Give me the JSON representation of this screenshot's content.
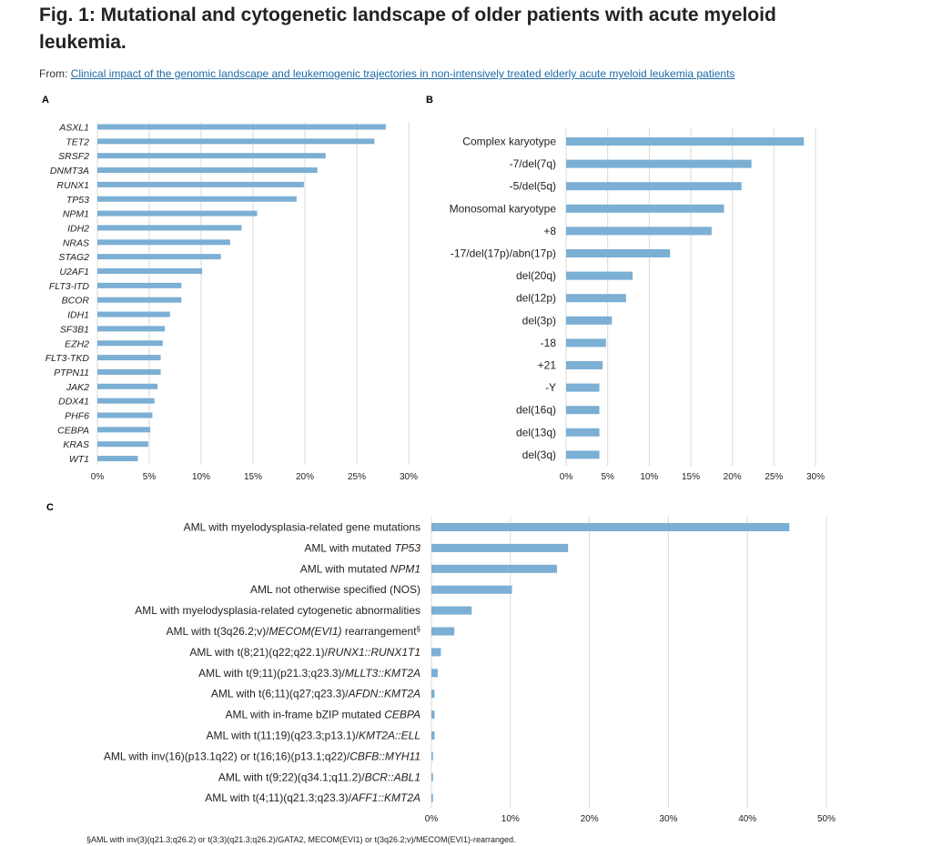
{
  "page": {
    "title": "Fig. 1: Mutational and cytogenetic landscape of older patients with acute myeloid leukemia.",
    "from_label": "From:",
    "source_link": "Clinical impact of the genomic landscape and leukemogenic trajectories in non-intensively treated elderly acute myeloid leukemia patients",
    "footnote": "§AML with inv(3)(q21.3;q26.2) or t(3;3)(q21.3;q26.2)/GATA2, MECOM(EVI1) or t(3q26.2;v)/MECOM(EVI1)-rearranged."
  },
  "colors": {
    "bar": "#7bafd4",
    "grid": "#d9d9d9",
    "text": "#222222",
    "link": "#1d6aa5"
  },
  "chart_data": [
    {
      "panel": "A",
      "type": "bar",
      "orientation": "horizontal",
      "categories": [
        "ASXL1",
        "TET2",
        "SRSF2",
        "DNMT3A",
        "RUNX1",
        "TP53",
        "NPM1",
        "IDH2",
        "NRAS",
        "STAG2",
        "U2AF1",
        "FLT3-ITD",
        "BCOR",
        "IDH1",
        "SF3B1",
        "EZH2",
        "FLT3-TKD",
        "PTPN11",
        "JAK2",
        "DDX41",
        "PHF6",
        "CEBPA",
        "KRAS",
        "WT1"
      ],
      "values": [
        27.8,
        26.7,
        22.0,
        21.2,
        19.9,
        19.2,
        15.4,
        13.9,
        12.8,
        11.9,
        10.1,
        8.1,
        8.1,
        7.0,
        6.5,
        6.3,
        6.1,
        6.1,
        5.8,
        5.5,
        5.3,
        5.1,
        4.9,
        3.9
      ],
      "xlim": [
        0,
        30
      ],
      "ticks": [
        "0%",
        "5%",
        "10%",
        "15%",
        "20%",
        "25%",
        "30%"
      ],
      "grid": true
    },
    {
      "panel": "B",
      "type": "bar",
      "orientation": "horizontal",
      "categories": [
        "Complex karyotype",
        "-7/del(7q)",
        "-5/del(5q)",
        "Monosomal karyotype",
        "+8",
        "-17/del(17p)/abn(17p)",
        "del(20q)",
        "del(12p)",
        "del(3p)",
        "-18",
        "+21",
        "-Y",
        "del(16q)",
        "del(13q)",
        "del(3q)"
      ],
      "values": [
        28.6,
        22.3,
        21.1,
        19.0,
        17.5,
        12.5,
        8.0,
        7.2,
        5.5,
        4.8,
        4.4,
        4.0,
        4.0,
        4.0,
        4.0
      ],
      "xlim": [
        0,
        30
      ],
      "ticks": [
        "0%",
        "5%",
        "10%",
        "15%",
        "20%",
        "25%",
        "30%"
      ],
      "grid": true
    },
    {
      "panel": "C",
      "type": "bar",
      "orientation": "horizontal",
      "categories": [
        [
          "AML with myelodysplasia-related gene mutations"
        ],
        [
          "AML with mutated ",
          "*TP53"
        ],
        [
          "AML with mutated ",
          "*NPM1"
        ],
        [
          "AML not otherwise specified (NOS)"
        ],
        [
          "AML with myelodysplasia-related cytogenetic abnormalities"
        ],
        [
          "AML with t(3q26.2;v)/",
          "*MECOM(EVI1)",
          " rearrangement",
          "^§"
        ],
        [
          "AML with t(8;21)(q22;q22.1)/",
          "*RUNX1::RUNX1T1"
        ],
        [
          "AML with t(9;11)(p21.3;q23.3)/",
          "*MLLT3::KMT2A"
        ],
        [
          "AML with t(6;11)(q27;q23.3)/",
          "*AFDN::KMT2A"
        ],
        [
          "AML with in-frame bZIP mutated ",
          "*CEBPA"
        ],
        [
          "AML with t(11;19)(q23.3;p13.1)/",
          "*KMT2A::ELL"
        ],
        [
          "AML with inv(16)(p13.1q22) or t(16;16)(p13.1;q22)/",
          "*CBFB::MYH11"
        ],
        [
          "AML with t(9;22)(q34.1;q11.2)/",
          "*BCR::ABL1"
        ],
        [
          "AML with t(4;11)(q21.3;q23.3)/",
          "*AFF1::KMT2A"
        ]
      ],
      "values": [
        45.3,
        17.3,
        15.9,
        10.2,
        5.1,
        2.9,
        1.2,
        0.8,
        0.4,
        0.4,
        0.4,
        0.2,
        0.2,
        0.2
      ],
      "xlim": [
        0,
        50
      ],
      "ticks": [
        "0%",
        "10%",
        "20%",
        "30%",
        "40%",
        "50%"
      ],
      "grid": true
    }
  ]
}
